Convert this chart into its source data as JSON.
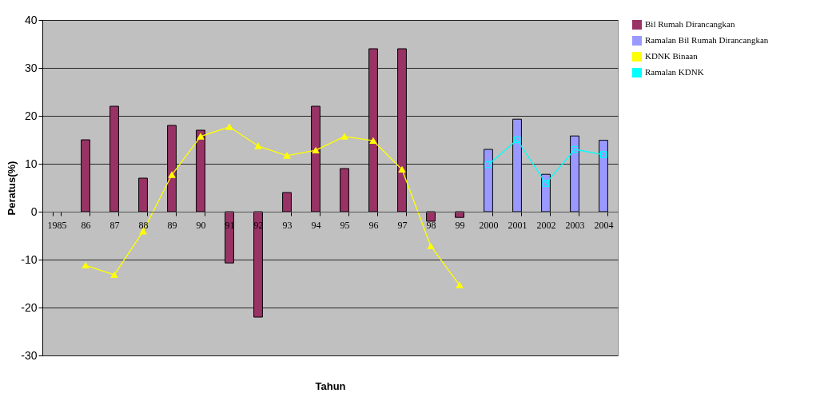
{
  "chart_data": {
    "type": "bar",
    "xlabel": "Tahun",
    "ylabel": "Peratus(%)",
    "categories": [
      "1985",
      "86",
      "87",
      "88",
      "89",
      "90",
      "91",
      "92",
      "93",
      "94",
      "95",
      "96",
      "97",
      "98",
      "99",
      "2000",
      "2001",
      "2002",
      "2003",
      "2004"
    ],
    "series": [
      {
        "name": "Bil Rumah Dirancangkan",
        "color": "#993366",
        "values": [
          null,
          15,
          22,
          7,
          18,
          17,
          -10.7,
          -22,
          4,
          22,
          9,
          34,
          34,
          -2,
          -1.2,
          null,
          null,
          null,
          null,
          null
        ]
      },
      {
        "name": "Ramalan Bil Rumah Dirancangkan",
        "color": "#9999ff",
        "values": [
          null,
          null,
          null,
          null,
          null,
          null,
          null,
          null,
          null,
          null,
          null,
          null,
          null,
          null,
          null,
          13,
          19.3,
          7.8,
          15.8,
          14.9
        ]
      },
      {
        "name": "KDNK Binaan",
        "type": "line",
        "color": "#ffff00",
        "marker": "triangle",
        "values": [
          null,
          -11.2,
          -13.2,
          -4.1,
          7.7,
          15.7,
          17.7,
          13.7,
          11.7,
          12.8,
          15.7,
          14.8,
          8.8,
          -7.2,
          -15.3,
          null,
          null,
          null,
          null,
          null
        ]
      },
      {
        "name": "Ramalan KDNK",
        "type": "line",
        "color": "#00ffff",
        "marker": "square",
        "values": [
          null,
          null,
          null,
          null,
          null,
          null,
          null,
          null,
          null,
          null,
          null,
          null,
          null,
          null,
          null,
          9.8,
          15,
          5.9,
          13,
          11.9
        ]
      }
    ],
    "ylim": [
      -30,
      40
    ],
    "yticks": [
      -30,
      -20,
      -10,
      0,
      10,
      20,
      30,
      40
    ],
    "grid": "y",
    "legend": "right"
  }
}
